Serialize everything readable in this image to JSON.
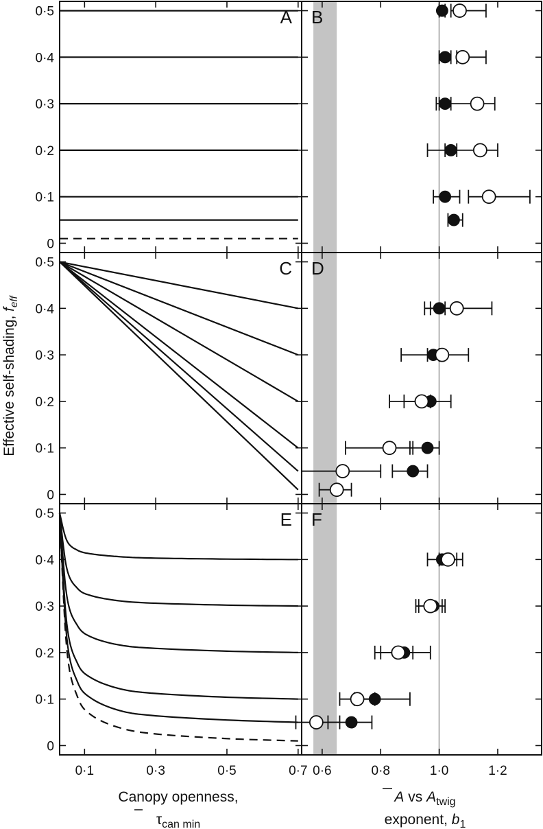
{
  "yaxis_label": {
    "main": "Effective self-shading, ",
    "var": "f",
    "sub": "eff"
  },
  "left_xaxis": {
    "line1": "Canopy openness,",
    "sym": "τ",
    "sub": "can min"
  },
  "right_xaxis": {
    "bar_sym": "A",
    "vs": " vs ",
    "sym2": "A",
    "sub2": "twig",
    "line2": "exponent, ",
    "var": "b",
    "sub": "1"
  },
  "ytick_labels": [
    "0",
    "0·1",
    "0·2",
    "0·3",
    "0·4",
    "0·5"
  ],
  "left_xtick_labels": [
    "0·1",
    "0·3",
    "0·5",
    "0·7"
  ],
  "right_xtick_labels": [
    "0·6",
    "0·8",
    "1·0",
    "1·2"
  ],
  "chart_data": [
    {
      "panel": "A",
      "type": "line",
      "xlabel": "Canopy openness, τ̄ can min",
      "ylabel": "Effective self-shading, f eff",
      "xlim": [
        0.03,
        0.71
      ],
      "ylim": [
        -0.02,
        0.52
      ],
      "series": [
        {
          "style": "solid",
          "x": [
            0.03,
            0.7
          ],
          "y": [
            0.5,
            0.5
          ]
        },
        {
          "style": "solid",
          "x": [
            0.03,
            0.7
          ],
          "y": [
            0.4,
            0.4
          ]
        },
        {
          "style": "solid",
          "x": [
            0.03,
            0.7
          ],
          "y": [
            0.3,
            0.3
          ]
        },
        {
          "style": "solid",
          "x": [
            0.03,
            0.7
          ],
          "y": [
            0.2,
            0.2
          ]
        },
        {
          "style": "solid",
          "x": [
            0.03,
            0.7
          ],
          "y": [
            0.1,
            0.1
          ]
        },
        {
          "style": "solid",
          "x": [
            0.03,
            0.7
          ],
          "y": [
            0.05,
            0.05
          ]
        },
        {
          "style": "dashed",
          "x": [
            0.03,
            0.7
          ],
          "y": [
            0.01,
            0.01
          ]
        }
      ]
    },
    {
      "panel": "B",
      "type": "scatter",
      "xlabel": "Ā vs A twig exponent, b1",
      "xlim": [
        0.53,
        1.35
      ],
      "ylim": [
        -0.02,
        0.52
      ],
      "shaded_band": [
        0.57,
        0.65
      ],
      "reference_line": 1.0,
      "series": [
        {
          "marker": "filled",
          "points": [
            {
              "y": 0.5,
              "x": 1.01,
              "lo": 1.0,
              "hi": 1.02
            },
            {
              "y": 0.4,
              "x": 1.02,
              "lo": 1.0,
              "hi": 1.04
            },
            {
              "y": 0.3,
              "x": 1.02,
              "lo": 1.0,
              "hi": 1.04
            },
            {
              "y": 0.2,
              "x": 1.04,
              "lo": 1.02,
              "hi": 1.06
            },
            {
              "y": 0.1,
              "x": 1.02,
              "lo": 0.98,
              "hi": 1.07
            },
            {
              "y": 0.05,
              "x": 1.05,
              "lo": 1.03,
              "hi": 1.08
            }
          ]
        },
        {
          "marker": "open",
          "points": [
            {
              "y": 0.5,
              "x": 1.07,
              "lo": 1.04,
              "hi": 1.16
            },
            {
              "y": 0.4,
              "x": 1.08,
              "lo": 1.06,
              "hi": 1.16
            },
            {
              "y": 0.3,
              "x": 1.13,
              "lo": 0.99,
              "hi": 1.19
            },
            {
              "y": 0.2,
              "x": 1.14,
              "lo": 0.96,
              "hi": 1.2
            },
            {
              "y": 0.1,
              "x": 1.17,
              "lo": 1.1,
              "hi": 1.31
            }
          ]
        }
      ]
    },
    {
      "panel": "C",
      "type": "line",
      "xlabel": "Canopy openness, τ̄ can min",
      "ylabel": "Effective self-shading, f eff",
      "xlim": [
        0.03,
        0.71
      ],
      "ylim": [
        -0.02,
        0.52
      ],
      "series": [
        {
          "style": "solid",
          "x": [
            0.03,
            0.7
          ],
          "y": [
            0.5,
            0.4
          ]
        },
        {
          "style": "solid",
          "x": [
            0.03,
            0.7
          ],
          "y": [
            0.5,
            0.3
          ]
        },
        {
          "style": "solid",
          "x": [
            0.03,
            0.7
          ],
          "y": [
            0.5,
            0.2
          ]
        },
        {
          "style": "solid",
          "x": [
            0.03,
            0.7
          ],
          "y": [
            0.5,
            0.1
          ]
        },
        {
          "style": "solid",
          "x": [
            0.03,
            0.7
          ],
          "y": [
            0.5,
            0.05
          ]
        },
        {
          "style": "solid",
          "x": [
            0.03,
            0.7
          ],
          "y": [
            0.5,
            0.01
          ]
        }
      ]
    },
    {
      "panel": "D",
      "type": "scatter",
      "xlabel": "Ā vs A twig exponent, b1",
      "xlim": [
        0.53,
        1.35
      ],
      "ylim": [
        -0.02,
        0.52
      ],
      "shaded_band": [
        0.57,
        0.65
      ],
      "reference_line": 1.0,
      "series": [
        {
          "marker": "filled",
          "points": [
            {
              "y": 0.4,
              "x": 1.0,
              "lo": 0.97,
              "hi": 1.02
            },
            {
              "y": 0.3,
              "x": 0.98,
              "lo": 0.96,
              "hi": 1.0
            },
            {
              "y": 0.2,
              "x": 0.97,
              "lo": 0.88,
              "hi": 1.04
            },
            {
              "y": 0.1,
              "x": 0.96,
              "lo": 0.9,
              "hi": 1.0
            },
            {
              "y": 0.05,
              "x": 0.91,
              "lo": 0.84,
              "hi": 0.96
            }
          ]
        },
        {
          "marker": "open",
          "points": [
            {
              "y": 0.4,
              "x": 1.06,
              "lo": 0.95,
              "hi": 1.18
            },
            {
              "y": 0.3,
              "x": 1.01,
              "lo": 0.87,
              "hi": 1.1
            },
            {
              "y": 0.2,
              "x": 0.94,
              "lo": 0.83,
              "hi": 0.97
            },
            {
              "y": 0.1,
              "x": 0.83,
              "lo": 0.68,
              "hi": 0.91
            },
            {
              "y": 0.05,
              "x": 0.67,
              "lo": 0.53,
              "hi": 0.8
            },
            {
              "y": 0.01,
              "x": 0.65,
              "lo": 0.59,
              "hi": 0.7
            }
          ]
        }
      ]
    },
    {
      "panel": "E",
      "type": "line",
      "xlabel": "Canopy openness, τ̄ can min",
      "ylabel": "Effective self-shading, f eff",
      "xlim": [
        0.03,
        0.71
      ],
      "ylim": [
        -0.02,
        0.52
      ],
      "series": [
        {
          "style": "solid",
          "x": [
            0.03,
            0.05,
            0.08,
            0.12,
            0.2,
            0.3,
            0.5,
            0.7
          ],
          "y": [
            0.5,
            0.441,
            0.42,
            0.412,
            0.406,
            0.403,
            0.401,
            0.4
          ]
        },
        {
          "style": "solid",
          "x": [
            0.03,
            0.05,
            0.08,
            0.12,
            0.2,
            0.3,
            0.5,
            0.7
          ],
          "y": [
            0.5,
            0.381,
            0.338,
            0.322,
            0.311,
            0.306,
            0.302,
            0.3
          ]
        },
        {
          "style": "solid",
          "x": [
            0.03,
            0.05,
            0.08,
            0.12,
            0.2,
            0.3,
            0.5,
            0.7
          ],
          "y": [
            0.5,
            0.322,
            0.258,
            0.233,
            0.216,
            0.209,
            0.203,
            0.2
          ]
        },
        {
          "style": "solid",
          "x": [
            0.03,
            0.05,
            0.08,
            0.12,
            0.2,
            0.3,
            0.5,
            0.7
          ],
          "y": [
            0.5,
            0.262,
            0.177,
            0.145,
            0.122,
            0.112,
            0.104,
            0.1
          ]
        },
        {
          "style": "solid",
          "x": [
            0.03,
            0.05,
            0.08,
            0.12,
            0.2,
            0.3,
            0.5,
            0.7
          ],
          "y": [
            0.5,
            0.232,
            0.137,
            0.101,
            0.075,
            0.064,
            0.055,
            0.05
          ]
        },
        {
          "style": "dashed",
          "x": [
            0.03,
            0.05,
            0.08,
            0.12,
            0.2,
            0.3,
            0.5,
            0.7
          ],
          "y": [
            0.5,
            0.208,
            0.105,
            0.065,
            0.038,
            0.025,
            0.015,
            0.01
          ]
        }
      ]
    },
    {
      "panel": "F",
      "type": "scatter",
      "xlabel": "Ā vs A twig exponent, b1",
      "xlim": [
        0.53,
        1.35
      ],
      "ylim": [
        -0.02,
        0.52
      ],
      "shaded_band": [
        0.57,
        0.65
      ],
      "reference_line": 1.0,
      "series": [
        {
          "marker": "filled",
          "points": [
            {
              "y": 0.4,
              "x": 1.01,
              "lo": 0.96,
              "hi": 1.06
            },
            {
              "y": 0.3,
              "x": 0.98,
              "lo": 0.93,
              "hi": 1.01
            },
            {
              "y": 0.2,
              "x": 0.88,
              "lo": 0.8,
              "hi": 0.97
            },
            {
              "y": 0.1,
              "x": 0.78,
              "lo": 0.71,
              "hi": 0.9
            },
            {
              "y": 0.05,
              "x": 0.7,
              "lo": 0.62,
              "hi": 0.77
            }
          ]
        },
        {
          "marker": "open",
          "points": [
            {
              "y": 0.4,
              "x": 1.03,
              "lo": 1.0,
              "hi": 1.08
            },
            {
              "y": 0.3,
              "x": 0.97,
              "lo": 0.92,
              "hi": 1.02
            },
            {
              "y": 0.2,
              "x": 0.86,
              "lo": 0.78,
              "hi": 0.91
            },
            {
              "y": 0.1,
              "x": 0.72,
              "lo": 0.66,
              "hi": 0.78
            },
            {
              "y": 0.05,
              "x": 0.58,
              "lo": 0.51,
              "hi": 0.66
            }
          ]
        }
      ]
    }
  ]
}
